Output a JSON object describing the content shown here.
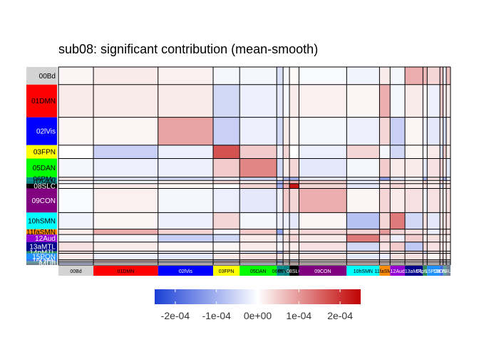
{
  "chart_data": {
    "type": "heatmap",
    "title": "sub08: significant contribution (mean-smooth)",
    "networks": [
      {
        "label": "00Bd",
        "size": 33,
        "color": "#d3d3d3",
        "text_color": "#000000"
      },
      {
        "label": "01DMN",
        "size": 61,
        "color": "#ff0000",
        "text_color": "#000000"
      },
      {
        "label": "02lVis",
        "size": 52,
        "color": "#0000ff",
        "text_color": "#ffffff"
      },
      {
        "label": "03FPN",
        "size": 25,
        "color": "#ffff00",
        "text_color": "#000000"
      },
      {
        "label": "05DAN",
        "size": 35,
        "color": "#00ff00",
        "text_color": "#000000"
      },
      {
        "label": "06PMo",
        "size": 6,
        "color": "#008b8b",
        "text_color": "#000000"
      },
      {
        "label": "07VAN",
        "size": 6,
        "color": "#008080",
        "text_color": "#000000"
      },
      {
        "label": "08SLC",
        "size": 9,
        "color": "#000000",
        "text_color": "#ffffff"
      },
      {
        "label": "09CON",
        "size": 45,
        "color": "#800080",
        "text_color": "#ffffff"
      },
      {
        "label": "10hSMN",
        "size": 31,
        "color": "#00ffff",
        "text_color": "#000000"
      },
      {
        "label": "11faSMN",
        "size": 10,
        "color": "#ff8c00",
        "text_color": "#000000"
      },
      {
        "label": "12Aud",
        "size": 14,
        "color": "#9400d3",
        "text_color": "#ffffff"
      },
      {
        "label": "13aMTL",
        "size": 17,
        "color": "#00008b",
        "text_color": "#ffffff"
      },
      {
        "label": "14pMTL",
        "size": 4,
        "color": "#2e8b57",
        "text_color": "#ffffff"
      },
      {
        "label": "15PON",
        "size": 12,
        "color": "#1e90ff",
        "text_color": "#ffffff"
      },
      {
        "label": "16OAN",
        "size": 3,
        "color": "#4169e1",
        "text_color": "#ffffff"
      },
      {
        "label": "17Cb",
        "size": 3,
        "color": "#5f9ea0",
        "text_color": "#ffffff"
      },
      {
        "label": "84Un",
        "size": 4,
        "color": "#708090",
        "text_color": "#ffffff"
      }
    ],
    "values": [
      [
        0.1,
        0.2,
        0.15,
        -0.1,
        -0.1,
        -0.4,
        -0.1,
        0.05,
        -0.05,
        -0.15,
        0.2,
        -0.1,
        0.8,
        0.7,
        0.4,
        0.6,
        -0.2,
        0.6
      ],
      [
        0.2,
        0.2,
        0.2,
        -0.5,
        -0.2,
        -0.3,
        -0.1,
        0.2,
        0.15,
        0.1,
        0.8,
        -0.1,
        0.2,
        0.1,
        -0.2,
        0.6,
        0.2,
        0.2
      ],
      [
        0.1,
        0.1,
        0.9,
        -0.6,
        -0.2,
        -0.5,
        0.2,
        0.1,
        -0.1,
        -0.2,
        0.4,
        -0.6,
        0.1,
        -0.2,
        -0.3,
        0.2,
        -0.5,
        0.2
      ],
      [
        0.0,
        -0.6,
        -0.2,
        1.7,
        0.5,
        -0.2,
        0.4,
        0.0,
        -0.2,
        0.4,
        -0.1,
        -0.5,
        0.1,
        -0.1,
        0.2,
        -0.5,
        0.5,
        0.2
      ],
      [
        -0.1,
        -0.2,
        -0.2,
        0.5,
        1.2,
        -0.5,
        0.2,
        0.4,
        -0.3,
        -0.1,
        0.5,
        0.2,
        0.2,
        -0.3,
        0.3,
        0.5,
        0.2,
        -0.3
      ],
      [
        0.2,
        -0.3,
        -0.5,
        -0.2,
        -0.5,
        -0.2,
        -0.9,
        -1.0,
        -0.2,
        -0.2,
        -1.2,
        -0.3,
        -0.1,
        -1.0,
        0.3,
        -0.5,
        -1.0,
        -0.2
      ],
      [
        -0.1,
        -0.1,
        0.2,
        0.4,
        0.2,
        -0.9,
        0.5,
        0.8,
        0.5,
        -0.2,
        0.2,
        0.3,
        0.2,
        0.5,
        0.2,
        0.5,
        0.2,
        0.2
      ],
      [
        0.05,
        0.2,
        0.1,
        0.0,
        0.4,
        -1.0,
        0.8,
        2.3,
        0.4,
        -0.3,
        0.3,
        0.4,
        0.2,
        0.3,
        0.2,
        -0.5,
        0.3,
        0.3
      ],
      [
        -0.05,
        0.15,
        -0.1,
        -0.2,
        -0.3,
        -0.2,
        0.5,
        0.4,
        0.8,
        0.1,
        0.4,
        0.2,
        0.3,
        -0.2,
        0.3,
        0.2,
        0.1,
        0.3
      ],
      [
        -0.15,
        0.1,
        -0.2,
        0.4,
        -0.1,
        -0.2,
        -0.2,
        -0.3,
        0.1,
        -0.8,
        0.4,
        1.3,
        -0.5,
        0.3,
        -0.3,
        0.3,
        0.3,
        0.3
      ],
      [
        0.2,
        0.8,
        0.4,
        -0.1,
        0.5,
        -1.2,
        0.2,
        0.3,
        0.4,
        0.4,
        1.0,
        0.4,
        0.3,
        0.3,
        -0.2,
        0.3,
        0.3,
        0.3
      ],
      [
        -0.1,
        -0.1,
        -0.6,
        -0.5,
        0.2,
        -0.3,
        0.3,
        0.4,
        0.2,
        1.3,
        0.4,
        -0.2,
        0.5,
        0.2,
        0.3,
        0.2,
        0.2,
        0.2
      ],
      [
        0.3,
        0.2,
        0.1,
        0.1,
        0.2,
        -0.1,
        0.2,
        0.2,
        0.3,
        -0.5,
        0.3,
        0.5,
        -0.7,
        0.4,
        0.3,
        0.3,
        0.2,
        0.2
      ],
      [
        0.3,
        0.1,
        -0.2,
        -0.1,
        -0.3,
        -1.0,
        0.5,
        0.3,
        -0.2,
        0.3,
        0.3,
        0.2,
        0.4,
        -0.5,
        0.3,
        0.3,
        0.2,
        0.2
      ],
      [
        0.2,
        -0.2,
        -0.3,
        0.2,
        0.3,
        0.3,
        0.2,
        0.2,
        0.3,
        -0.3,
        -0.2,
        0.3,
        0.3,
        0.3,
        0.1,
        0.3,
        0.2,
        0.2
      ],
      [
        0.2,
        0.6,
        0.2,
        -0.5,
        0.5,
        -0.5,
        0.5,
        -0.5,
        0.2,
        0.3,
        0.3,
        0.2,
        0.3,
        0.3,
        0.3,
        0.5,
        0.2,
        0.2
      ],
      [
        -0.3,
        0.2,
        -0.5,
        0.5,
        0.2,
        -1.0,
        0.2,
        0.3,
        0.1,
        0.3,
        0.3,
        0.2,
        0.2,
        0.2,
        0.2,
        0.2,
        -0.5,
        0.2
      ],
      [
        -0.5,
        0.2,
        0.2,
        0.2,
        -0.3,
        -0.2,
        0.2,
        0.3,
        0.3,
        0.3,
        0.3,
        0.2,
        0.2,
        0.2,
        0.2,
        0.2,
        0.2,
        -0.5
      ]
    ],
    "value_scale": "1e-04",
    "legend": {
      "position": "bottom",
      "min": -0.00025,
      "max": 0.00025,
      "ticks": [
        "-2e-04",
        "-1e-04",
        "0e+00",
        "1e-04",
        "2e-04"
      ],
      "tick_values": [
        -0.0002,
        -0.0001,
        0,
        0.0001,
        0.0002
      ],
      "low_color": "#1a3fd6",
      "mid_color": "#ffffff",
      "high_color": "#c00000"
    }
  }
}
